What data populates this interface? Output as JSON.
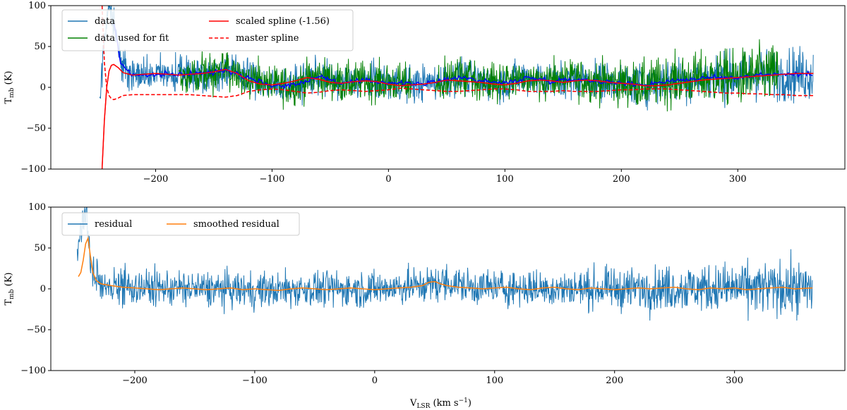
{
  "chart_data": [
    {
      "type": "line",
      "ylabel": "T",
      "ylabel_sub": "mb",
      "ylabel_unit": "(K)",
      "xlim": [
        -290,
        392
      ],
      "ylim": [
        -100,
        100
      ],
      "xticks": [
        -200,
        -100,
        0,
        100,
        200,
        300
      ],
      "xtick_labels": [
        "−200",
        "−100",
        "0",
        "100",
        "200",
        "300"
      ],
      "yticks": [
        100,
        50,
        0,
        -50,
        -100
      ],
      "ytick_labels": [
        "100",
        "50",
        "0",
        "−50",
        "−100"
      ],
      "grid": false,
      "legend_position": "upper-left",
      "series": [
        {
          "name": "data",
          "color": "#1f77b4",
          "style": "solid",
          "x_range": [
            -248,
            365
          ],
          "noise_amplitude": 20,
          "baseline": [
            [
              -248,
              -20
            ],
            [
              -244,
              60
            ],
            [
              -240,
              110
            ],
            [
              -236,
              80
            ],
            [
              -230,
              30
            ],
            [
              -220,
              15
            ],
            [
              -200,
              15
            ],
            [
              -180,
              16
            ],
            [
              -150,
              18
            ],
            [
              -140,
              22
            ],
            [
              -120,
              12
            ],
            [
              -100,
              2
            ],
            [
              -80,
              3
            ],
            [
              -60,
              14
            ],
            [
              -40,
              5
            ],
            [
              -20,
              8
            ],
            [
              0,
              6
            ],
            [
              20,
              4
            ],
            [
              40,
              6
            ],
            [
              60,
              13
            ],
            [
              80,
              8
            ],
            [
              100,
              5
            ],
            [
              120,
              12
            ],
            [
              140,
              8
            ],
            [
              160,
              10
            ],
            [
              180,
              8
            ],
            [
              200,
              5
            ],
            [
              220,
              3
            ],
            [
              240,
              8
            ],
            [
              260,
              10
            ],
            [
              280,
              12
            ],
            [
              300,
              12
            ],
            [
              320,
              16
            ],
            [
              340,
              16
            ],
            [
              365,
              16
            ]
          ]
        },
        {
          "name": "data used for fit",
          "color": "#008000",
          "style": "solid",
          "segments": [
            [
              -180,
              20
            ],
            [
              40,
              335
            ]
          ],
          "noise_amplitude": 20
        },
        {
          "name": "scaled spline (-1.56)",
          "color": "#ff0000",
          "style": "solid",
          "x": [
            -246,
            -244,
            -242,
            -240,
            -238,
            -236,
            -232,
            -228,
            -220,
            -210,
            -200,
            -190,
            -180,
            -170,
            -160,
            -150,
            -140,
            -130,
            -120,
            -110,
            -100,
            -90,
            -80,
            -70,
            -60,
            -50,
            -40,
            -30,
            -20,
            -10,
            0,
            10,
            20,
            30,
            40,
            50,
            60,
            70,
            80,
            90,
            100,
            110,
            120,
            130,
            140,
            150,
            160,
            170,
            180,
            190,
            200,
            210,
            220,
            230,
            240,
            250,
            260,
            270,
            280,
            290,
            300,
            310,
            320,
            330,
            340,
            350,
            365
          ],
          "y": [
            -100,
            -40,
            0,
            20,
            27,
            28,
            24,
            18,
            15,
            16,
            17,
            16,
            15,
            16,
            17,
            19,
            22,
            17,
            8,
            4,
            3,
            5,
            8,
            12,
            10,
            6,
            5,
            7,
            8,
            7,
            4,
            2,
            3,
            4,
            6,
            9,
            8,
            7,
            6,
            4,
            3,
            5,
            8,
            9,
            8,
            6,
            8,
            9,
            8,
            6,
            5,
            4,
            2,
            2,
            3,
            5,
            7,
            9,
            10,
            11,
            12,
            13,
            14,
            15,
            16,
            17,
            17
          ]
        },
        {
          "name": "master spline",
          "color": "#ff0000",
          "style": "dashed",
          "x": [
            -246,
            -244,
            -242,
            -240,
            -238,
            -236,
            -232,
            -228,
            -220,
            -210,
            -200,
            -190,
            -180,
            -170,
            -160,
            -150,
            -140,
            -130,
            -120,
            -110,
            -100,
            -90,
            -80,
            -70,
            -60,
            -50,
            -40,
            -30,
            -20,
            -10,
            0,
            10,
            20,
            30,
            40,
            50,
            60,
            70,
            80,
            90,
            100,
            110,
            120,
            130,
            140,
            150,
            160,
            170,
            180,
            190,
            200,
            210,
            220,
            230,
            240,
            250,
            260,
            270,
            280,
            290,
            300,
            310,
            320,
            330,
            340,
            350,
            365
          ],
          "y": [
            100,
            30,
            0,
            -10,
            -14,
            -15,
            -13,
            -10,
            -9,
            -9,
            -9,
            -9,
            -9,
            -9,
            -10,
            -11,
            -12,
            -10,
            -5,
            -3,
            -2,
            -3,
            -5,
            -7,
            -6,
            -4,
            -3,
            -4,
            -5,
            -4,
            -3,
            -1,
            -2,
            -3,
            -4,
            -5,
            -5,
            -4,
            -3,
            -2,
            -2,
            -3,
            -5,
            -5,
            -5,
            -4,
            -5,
            -5,
            -5,
            -4,
            -3,
            -3,
            -2,
            -2,
            -2,
            -3,
            -4,
            -5,
            -6,
            -7,
            -7,
            -8,
            -8,
            -9,
            -9,
            -10,
            -10
          ]
        }
      ],
      "legend": [
        {
          "label": "data",
          "color": "#1f77b4",
          "style": "solid"
        },
        {
          "label": "data used for fit",
          "color": "#008000",
          "style": "solid"
        },
        {
          "label": "scaled spline (-1.56)",
          "color": "#ff0000",
          "style": "solid"
        },
        {
          "label": "master spline",
          "color": "#ff0000",
          "style": "dashed"
        }
      ]
    },
    {
      "type": "line",
      "xlabel": "V",
      "xlabel_sub": "LSR",
      "xlabel_unit": "(km s",
      "xlabel_sup": "−1",
      "xlabel_close": ")",
      "ylabel": "T",
      "ylabel_sub": "mb",
      "ylabel_unit": "(K)",
      "xlim": [
        -270,
        392
      ],
      "ylim": [
        -100,
        100
      ],
      "xticks": [
        -200,
        -100,
        0,
        100,
        200,
        300
      ],
      "xtick_labels": [
        "−200",
        "−100",
        "0",
        "100",
        "200",
        "300"
      ],
      "yticks": [
        100,
        50,
        0,
        -50,
        -100
      ],
      "ytick_labels": [
        "100",
        "50",
        "0",
        "−50",
        "−100"
      ],
      "grid": false,
      "legend_position": "upper-left",
      "series": [
        {
          "name": "residual",
          "color": "#1f77b4",
          "style": "solid",
          "x_range": [
            -248,
            365
          ],
          "noise_amplitude": 20,
          "baseline": [
            [
              -248,
              40
            ],
            [
              -244,
              80
            ],
            [
              -240,
              90
            ],
            [
              -236,
              20
            ],
            [
              -230,
              8
            ],
            [
              -220,
              5
            ],
            [
              -200,
              2
            ],
            [
              -150,
              0
            ],
            [
              -100,
              -2
            ],
            [
              -50,
              0
            ],
            [
              0,
              0
            ],
            [
              40,
              4
            ],
            [
              60,
              8
            ],
            [
              80,
              2
            ],
            [
              150,
              0
            ],
            [
              200,
              0
            ],
            [
              250,
              1
            ],
            [
              300,
              1
            ],
            [
              365,
              0
            ]
          ]
        },
        {
          "name": "smoothed residual",
          "color": "#ff7f0e",
          "style": "solid",
          "x": [
            -247,
            -245,
            -243,
            -241,
            -239,
            -237,
            -235,
            -232,
            -228,
            -220,
            -210,
            -200,
            -190,
            -180,
            -170,
            -160,
            -150,
            -140,
            -130,
            -120,
            -110,
            -100,
            -90,
            -80,
            -70,
            -60,
            -50,
            -40,
            -30,
            -20,
            -10,
            0,
            10,
            20,
            30,
            40,
            45,
            50,
            55,
            60,
            70,
            80,
            90,
            100,
            110,
            120,
            130,
            140,
            150,
            160,
            170,
            180,
            190,
            200,
            210,
            220,
            230,
            240,
            250,
            260,
            270,
            280,
            290,
            300,
            310,
            320,
            330,
            340,
            350,
            365
          ],
          "y": [
            15,
            20,
            35,
            55,
            62,
            40,
            20,
            10,
            6,
            4,
            2,
            1,
            0,
            -1,
            0,
            1,
            0,
            -1,
            0,
            1,
            -1,
            0,
            -1,
            -2,
            0,
            1,
            0,
            -1,
            0,
            1,
            0,
            -1,
            0,
            1,
            2,
            4,
            8,
            9,
            6,
            4,
            2,
            1,
            0,
            1,
            2,
            0,
            -1,
            1,
            2,
            0,
            -1,
            1,
            0,
            -1,
            0,
            1,
            0,
            1,
            2,
            0,
            -1,
            1,
            0,
            1,
            -1,
            0,
            1,
            2,
            0,
            1
          ]
        }
      ],
      "legend": [
        {
          "label": "residual",
          "color": "#1f77b4",
          "style": "solid"
        },
        {
          "label": "smoothed residual",
          "color": "#ff7f0e",
          "style": "solid"
        }
      ]
    }
  ]
}
